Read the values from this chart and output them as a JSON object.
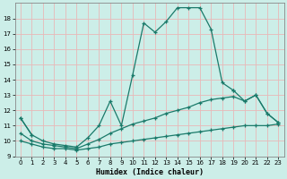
{
  "xlabel": "Humidex (Indice chaleur)",
  "bg_color": "#cceee8",
  "grid_color": "#e8b8b8",
  "line_color": "#1a7a6a",
  "xlim": [
    -0.5,
    23.5
  ],
  "ylim": [
    9,
    19
  ],
  "yticks": [
    9,
    10,
    11,
    12,
    13,
    14,
    15,
    16,
    17,
    18
  ],
  "xticks": [
    0,
    1,
    2,
    3,
    4,
    5,
    6,
    7,
    8,
    9,
    10,
    11,
    12,
    13,
    14,
    15,
    16,
    17,
    18,
    19,
    20,
    21,
    22,
    23
  ],
  "lines": [
    {
      "x": [
        0,
        1,
        2,
        3,
        4,
        5,
        6,
        7,
        8,
        9,
        10,
        11,
        12,
        13,
        14,
        15,
        16,
        17,
        18,
        19,
        20,
        21,
        22,
        23
      ],
      "y": [
        11.5,
        10.4,
        10.0,
        9.8,
        9.7,
        9.6,
        10.2,
        11.0,
        12.6,
        11.0,
        14.3,
        17.7,
        17.1,
        17.8,
        18.7,
        18.7,
        18.7,
        17.3,
        13.8,
        13.3,
        null,
        null,
        null,
        null
      ]
    },
    {
      "x": [
        0,
        1,
        2,
        3,
        4,
        5,
        6,
        7,
        8,
        9,
        10,
        11,
        12,
        13,
        14,
        15,
        16,
        17,
        18,
        19,
        20,
        21,
        22,
        23
      ],
      "y": [
        11.5,
        10.4,
        null,
        null,
        null,
        null,
        null,
        null,
        null,
        null,
        null,
        null,
        null,
        null,
        null,
        null,
        null,
        null,
        null,
        13.3,
        12.6,
        13.0,
        11.8,
        11.2
      ]
    },
    {
      "x": [
        0,
        1,
        2,
        3,
        4,
        5,
        6,
        7,
        8,
        9,
        10,
        11,
        12,
        13,
        14,
        15,
        16,
        17,
        18,
        19,
        20,
        21,
        22,
        23
      ],
      "y": [
        10.5,
        10.0,
        9.8,
        9.7,
        9.6,
        9.5,
        9.8,
        10.1,
        10.5,
        10.8,
        11.1,
        11.3,
        11.5,
        11.8,
        12.0,
        12.2,
        12.5,
        12.7,
        12.8,
        12.9,
        12.6,
        13.0,
        11.8,
        11.2
      ]
    },
    {
      "x": [
        0,
        1,
        2,
        3,
        4,
        5,
        6,
        7,
        8,
        9,
        10,
        11,
        12,
        13,
        14,
        15,
        16,
        17,
        18,
        19,
        20,
        21,
        22,
        23
      ],
      "y": [
        10.0,
        9.8,
        9.6,
        9.5,
        9.5,
        9.4,
        9.5,
        9.6,
        9.8,
        9.9,
        10.0,
        10.1,
        10.2,
        10.3,
        10.4,
        10.5,
        10.6,
        10.7,
        10.8,
        10.9,
        11.0,
        11.0,
        11.0,
        11.1
      ]
    }
  ]
}
